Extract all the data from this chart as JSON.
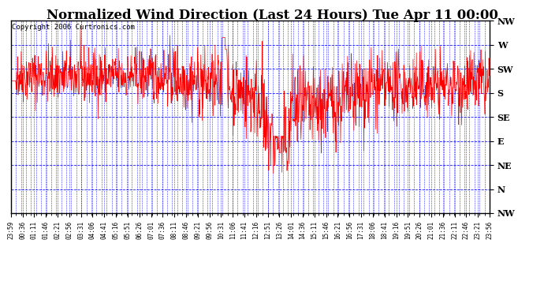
{
  "title": "Normalized Wind Direction (Last 24 Hours) Tue Apr 11 00:00",
  "copyright": "Copyright 2006 Curtronics.com",
  "ytick_labels": [
    "NW",
    "W",
    "SW",
    "S",
    "SE",
    "E",
    "NE",
    "N",
    "NW"
  ],
  "ytick_values": [
    8,
    7,
    6,
    5,
    4,
    3,
    2,
    1,
    0
  ],
  "xtick_labels": [
    "23:59",
    "00:36",
    "01:11",
    "01:46",
    "02:21",
    "02:56",
    "03:31",
    "04:06",
    "04:41",
    "05:16",
    "05:51",
    "06:26",
    "07:01",
    "07:36",
    "08:11",
    "08:46",
    "09:21",
    "09:56",
    "10:31",
    "11:06",
    "11:41",
    "12:16",
    "12:51",
    "13:26",
    "14:01",
    "14:36",
    "15:11",
    "15:46",
    "16:21",
    "16:56",
    "17:31",
    "18:06",
    "18:41",
    "19:16",
    "19:51",
    "20:26",
    "21:01",
    "21:36",
    "22:11",
    "22:46",
    "23:21",
    "23:56"
  ],
  "line_color": "red",
  "bg_color": "white",
  "grid_color": "blue",
  "border_color": "black",
  "title_fontsize": 12,
  "copyright_fontsize": 6.5,
  "ymin": 0,
  "ymax": 8,
  "num_points": 1440,
  "seed": 42
}
